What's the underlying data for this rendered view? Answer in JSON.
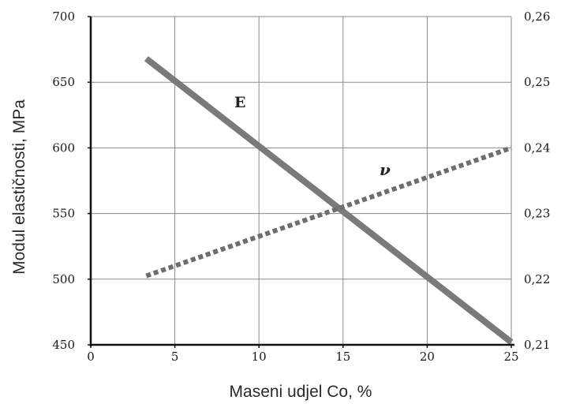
{
  "chart_data": {
    "type": "line",
    "xlabel": "Maseni udjel Co, %",
    "ylabel": "Modul elastičnosti, MPa",
    "xlim": [
      0,
      25
    ],
    "ylim": [
      450,
      700
    ],
    "y2lim": [
      0.21,
      0.26
    ],
    "grid": true,
    "x_ticks": [
      "0",
      "5",
      "10",
      "15",
      "20",
      "25"
    ],
    "y_ticks": [
      "450",
      "500",
      "550",
      "600",
      "650",
      "700"
    ],
    "y2_ticks": [
      "0,21",
      "0,22",
      "0,23",
      "0,24",
      "0,25",
      "0,26"
    ],
    "series": [
      {
        "name": "E",
        "axis": "left",
        "style": "solid",
        "color": "#7a7a7a",
        "x": [
          3.3,
          25
        ],
        "y": [
          668,
          452
        ]
      },
      {
        "name": "ν",
        "axis": "right",
        "style": "dotted",
        "color": "#6e6e6e",
        "x": [
          3.3,
          25
        ],
        "y": [
          0.2205,
          0.24
        ]
      }
    ]
  }
}
